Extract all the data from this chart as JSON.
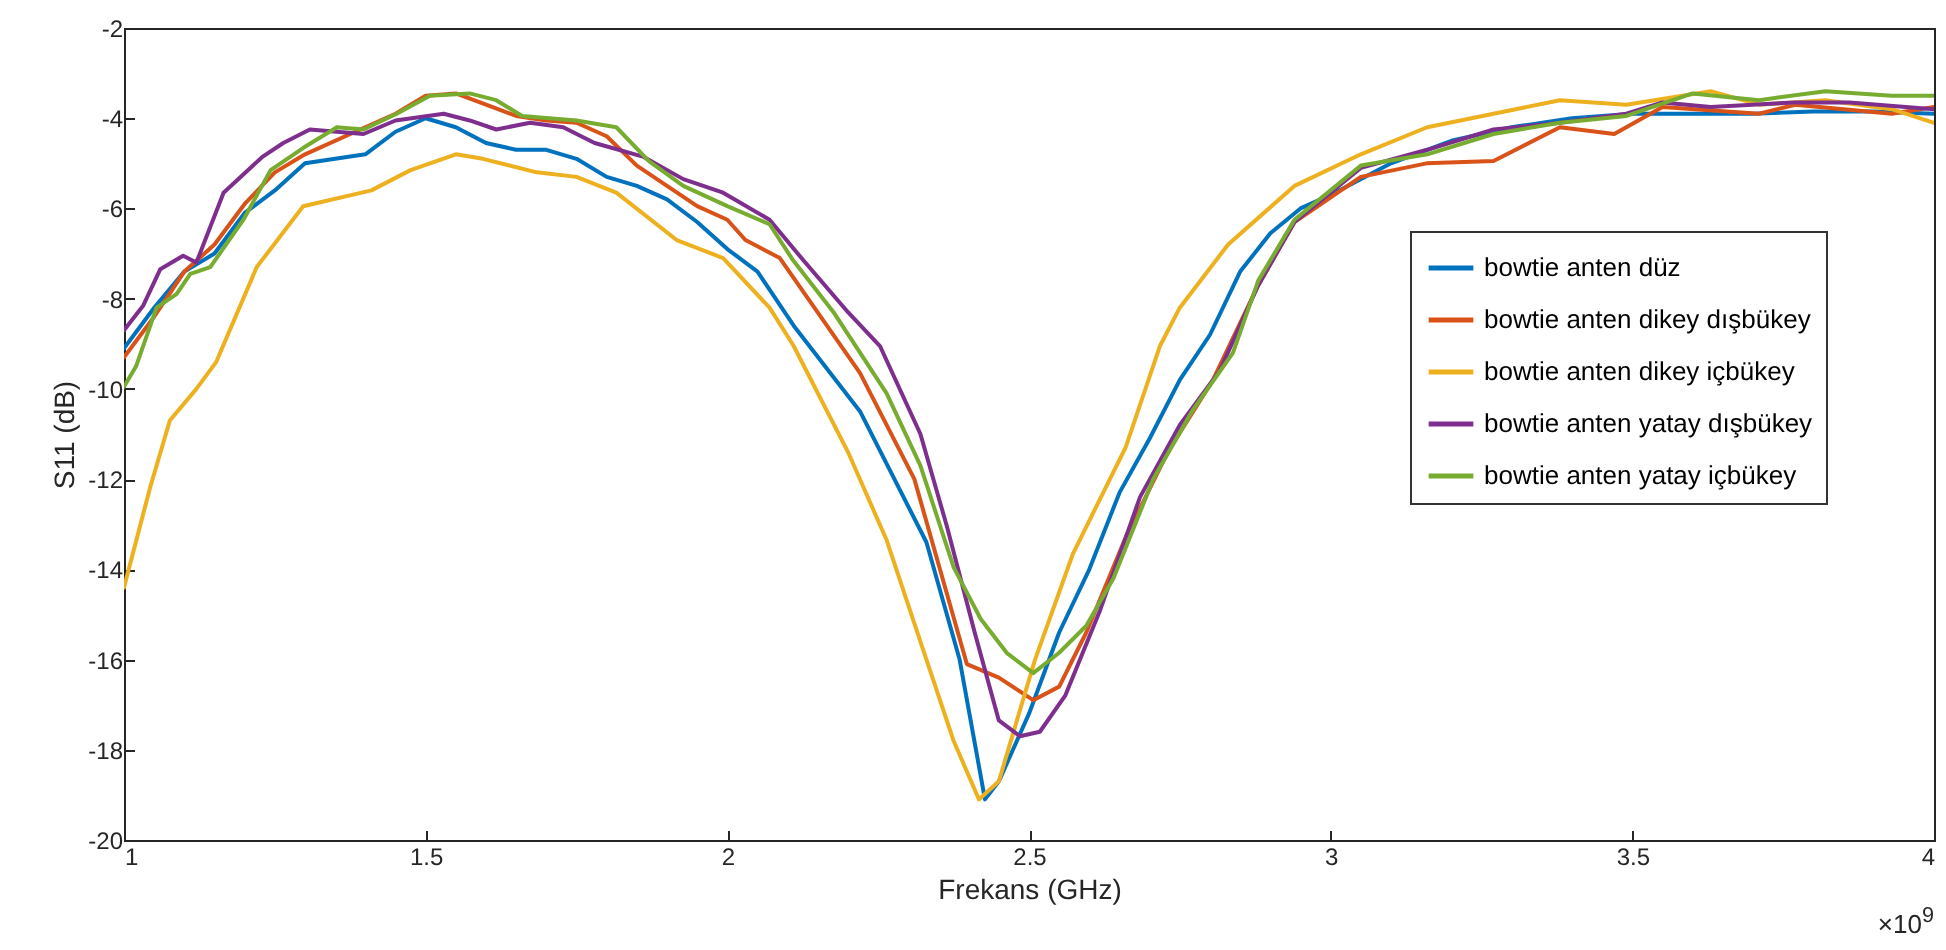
{
  "chart_data": {
    "type": "line",
    "xlabel": "Frekans (GHz)",
    "ylabel": "S11 (dB)",
    "annotations": [
      "×10$^{9}$"
    ],
    "xlim": [
      1,
      4
    ],
    "ylim": [
      -20,
      -2
    ],
    "xticks": [
      1,
      1.5,
      2,
      2.5,
      3,
      3.5,
      4
    ],
    "yticks": [
      -20,
      -18,
      -16,
      -14,
      -12,
      -10,
      -8,
      -6,
      -4,
      -2
    ],
    "grid": false,
    "legend": "right",
    "marker": "none",
    "line_style": "solid",
    "series": [
      {
        "name": "bowtie anten düz",
        "color": "#0072bd",
        "x": [
          1,
          1.05,
          1.1,
          1.15,
          1.2,
          1.25,
          1.3,
          1.35,
          1.4,
          1.45,
          1.5,
          1.55,
          1.6,
          1.65,
          1.7,
          1.75,
          1.8,
          1.85,
          1.9,
          1.95,
          2.0,
          2.05,
          2.11,
          2.22,
          2.33,
          2.385,
          2.427,
          2.45,
          2.5,
          2.55,
          2.6,
          2.65,
          2.7,
          2.75,
          2.8,
          2.85,
          2.9,
          2.95,
          3.0,
          3.1,
          3.2,
          3.3,
          3.4,
          3.5,
          3.6,
          3.7,
          3.8,
          3.9,
          4.0
        ],
        "values": [
          -9.1,
          -8.2,
          -7.4,
          -7.0,
          -6.1,
          -5.6,
          -5.0,
          -4.9,
          -4.8,
          -4.3,
          -4.0,
          -4.2,
          -4.55,
          -4.7,
          -4.7,
          -4.9,
          -5.3,
          -5.5,
          -5.8,
          -6.3,
          -6.9,
          -7.4,
          -8.6,
          -10.5,
          -13.4,
          -16.0,
          -19.1,
          -18.7,
          -17.2,
          -15.4,
          -14.0,
          -12.3,
          -11.1,
          -9.8,
          -8.8,
          -7.4,
          -6.55,
          -6.0,
          -5.7,
          -5.0,
          -4.5,
          -4.2,
          -4.0,
          -3.9,
          -3.9,
          -3.9,
          -3.85,
          -3.85,
          -3.9
        ]
      },
      {
        "name": "bowtie anten dikey dışbükey",
        "color": "#d95319",
        "x": [
          1,
          1.05,
          1.1,
          1.15,
          1.2,
          1.25,
          1.3,
          1.4,
          1.45,
          1.5,
          1.55,
          1.6,
          1.65,
          1.7,
          1.75,
          1.8,
          1.85,
          1.9,
          1.95,
          2.0,
          2.03,
          2.087,
          2.22,
          2.31,
          2.397,
          2.45,
          2.507,
          2.55,
          2.595,
          2.66,
          2.73,
          2.805,
          2.88,
          2.94,
          3.05,
          3.159,
          3.27,
          3.38,
          3.47,
          3.55,
          3.71,
          3.77,
          3.93,
          4.0
        ],
        "values": [
          -9.3,
          -8.4,
          -7.4,
          -6.8,
          -5.9,
          -5.2,
          -4.8,
          -4.2,
          -3.9,
          -3.5,
          -3.45,
          -3.7,
          -3.95,
          -4.05,
          -4.1,
          -4.4,
          -5.05,
          -5.5,
          -5.95,
          -6.25,
          -6.7,
          -7.1,
          -9.65,
          -12.0,
          -16.1,
          -16.4,
          -16.9,
          -16.6,
          -15.4,
          -13.3,
          -11.4,
          -9.8,
          -7.7,
          -6.3,
          -5.3,
          -5.0,
          -4.95,
          -4.2,
          -4.35,
          -3.75,
          -3.9,
          -3.7,
          -3.9,
          -3.75
        ]
      },
      {
        "name": "bowtie anten dikey içbükey",
        "color": "#edb120",
        "x": [
          1,
          1.043,
          1.076,
          1.12,
          1.153,
          1.22,
          1.297,
          1.41,
          1.475,
          1.55,
          1.595,
          1.684,
          1.75,
          1.816,
          1.916,
          1.993,
          2.07,
          2.11,
          2.2,
          2.264,
          2.33,
          2.375,
          2.417,
          2.45,
          2.51,
          2.573,
          2.66,
          2.717,
          2.75,
          2.83,
          2.94,
          3.05,
          3.16,
          3.27,
          3.38,
          3.49,
          3.63,
          3.71,
          3.82,
          3.93,
          4.0
        ],
        "values": [
          -14.4,
          -12.2,
          -10.7,
          -10.0,
          -9.4,
          -7.3,
          -5.95,
          -5.6,
          -5.15,
          -4.8,
          -4.9,
          -5.2,
          -5.3,
          -5.65,
          -6.7,
          -7.1,
          -8.2,
          -9.05,
          -11.4,
          -13.35,
          -16.0,
          -17.8,
          -19.1,
          -18.7,
          -16.0,
          -13.65,
          -11.3,
          -9.05,
          -8.2,
          -6.8,
          -5.5,
          -4.8,
          -4.2,
          -3.9,
          -3.6,
          -3.7,
          -3.4,
          -3.7,
          -3.6,
          -3.8,
          -4.1
        ]
      },
      {
        "name": "bowtie anten yatay dışbükey",
        "color": "#7e2f8e",
        "x": [
          1,
          1.032,
          1.06,
          1.098,
          1.12,
          1.165,
          1.23,
          1.264,
          1.308,
          1.397,
          1.45,
          1.53,
          1.573,
          1.617,
          1.673,
          1.728,
          1.78,
          1.86,
          1.927,
          1.993,
          2.07,
          2.126,
          2.2,
          2.253,
          2.32,
          2.364,
          2.41,
          2.45,
          2.485,
          2.518,
          2.56,
          2.618,
          2.684,
          2.75,
          2.816,
          2.88,
          2.94,
          3.05,
          3.16,
          3.27,
          3.38,
          3.49,
          3.55,
          3.63,
          3.77,
          3.86,
          4.0
        ],
        "values": [
          -8.7,
          -8.15,
          -7.35,
          -7.05,
          -7.2,
          -5.65,
          -4.85,
          -4.55,
          -4.25,
          -4.35,
          -4.05,
          -3.9,
          -4.05,
          -4.25,
          -4.1,
          -4.2,
          -4.55,
          -4.85,
          -5.35,
          -5.65,
          -6.25,
          -7.15,
          -8.3,
          -9.05,
          -11.0,
          -13.05,
          -15.4,
          -17.35,
          -17.7,
          -17.6,
          -16.8,
          -14.9,
          -12.4,
          -10.8,
          -9.6,
          -7.7,
          -6.3,
          -5.1,
          -4.7,
          -4.25,
          -4.1,
          -3.9,
          -3.65,
          -3.75,
          -3.65,
          -3.65,
          -3.8
        ]
      },
      {
        "name": "bowtie anten yatay içbükey",
        "color": "#77ac30",
        "x": [
          1,
          1.02,
          1.054,
          1.087,
          1.11,
          1.143,
          1.198,
          1.243,
          1.298,
          1.353,
          1.397,
          1.452,
          1.507,
          1.573,
          1.617,
          1.66,
          1.75,
          1.816,
          1.87,
          1.927,
          2.0,
          2.07,
          2.109,
          2.176,
          2.264,
          2.32,
          2.375,
          2.42,
          2.463,
          2.507,
          2.55,
          2.595,
          2.64,
          2.706,
          2.77,
          2.838,
          2.88,
          2.94,
          3.05,
          3.16,
          3.27,
          3.38,
          3.49,
          3.6,
          3.71,
          3.82,
          3.93,
          4.0
        ],
        "values": [
          -9.95,
          -9.5,
          -8.2,
          -7.9,
          -7.45,
          -7.3,
          -6.25,
          -5.15,
          -4.65,
          -4.2,
          -4.25,
          -3.9,
          -3.5,
          -3.45,
          -3.6,
          -3.95,
          -4.05,
          -4.2,
          -4.95,
          -5.5,
          -5.95,
          -6.35,
          -7.15,
          -8.3,
          -10.1,
          -11.7,
          -13.95,
          -15.1,
          -15.85,
          -16.3,
          -15.85,
          -15.25,
          -14.2,
          -12.0,
          -10.5,
          -9.2,
          -7.6,
          -6.25,
          -5.05,
          -4.8,
          -4.35,
          -4.1,
          -3.95,
          -3.45,
          -3.6,
          -3.4,
          -3.5,
          -3.5
        ]
      }
    ]
  }
}
